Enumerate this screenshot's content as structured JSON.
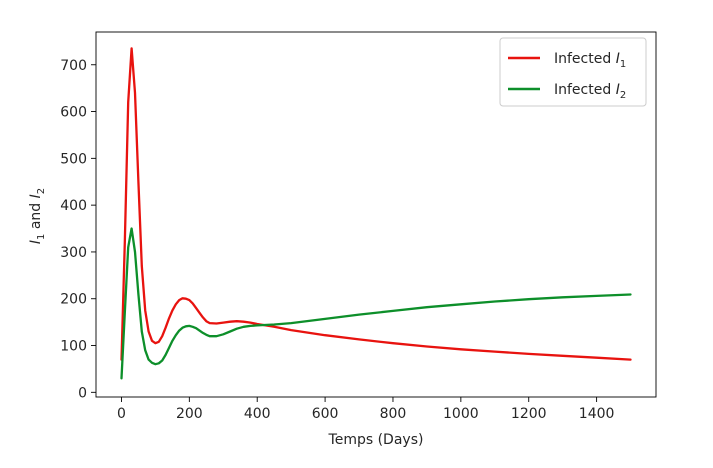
{
  "chart_data": {
    "type": "line",
    "title": "",
    "xlabel": "Temps (Days)",
    "ylabel": {
      "prefix": "I",
      "sub1": "1",
      "mid": " and ",
      "sub2": "2"
    },
    "xlim": [
      -75,
      1575
    ],
    "ylim": [
      -10,
      770
    ],
    "xticks": [
      0,
      200,
      400,
      600,
      800,
      1000,
      1200,
      1400
    ],
    "xtick_labels": [
      "0",
      "200",
      "400",
      "600",
      "800",
      "1000",
      "1200",
      "1400"
    ],
    "yticks": [
      0,
      100,
      200,
      300,
      400,
      500,
      600,
      700
    ],
    "ytick_labels": [
      "0",
      "100",
      "200",
      "300",
      "400",
      "500",
      "600",
      "700"
    ],
    "grid": false,
    "legend_position": "top-right",
    "series": [
      {
        "name": "Infected I1",
        "legend": {
          "text": "Infected ",
          "var": "I",
          "sub": "1"
        },
        "color": "#e8130f",
        "x": [
          0,
          10,
          20,
          30,
          40,
          50,
          60,
          70,
          80,
          90,
          100,
          110,
          120,
          130,
          140,
          150,
          160,
          170,
          180,
          190,
          200,
          210,
          220,
          230,
          240,
          250,
          260,
          280,
          300,
          320,
          340,
          360,
          380,
          400,
          450,
          500,
          600,
          700,
          800,
          900,
          1000,
          1100,
          1200,
          1300,
          1400,
          1500
        ],
        "y": [
          70,
          320,
          620,
          735,
          640,
          450,
          270,
          175,
          130,
          110,
          105,
          108,
          120,
          138,
          158,
          175,
          188,
          197,
          201,
          200,
          197,
          190,
          180,
          170,
          160,
          152,
          148,
          147,
          149,
          151,
          152,
          151,
          149,
          146,
          140,
          133,
          122,
          113,
          105,
          98,
          92,
          87,
          82,
          78,
          74,
          70
        ]
      },
      {
        "name": "Infected I2",
        "legend": {
          "text": "Infected ",
          "var": "I",
          "sub": "2"
        },
        "color": "#0d8f2a",
        "x": [
          0,
          10,
          20,
          30,
          40,
          50,
          60,
          70,
          80,
          90,
          100,
          110,
          120,
          130,
          140,
          150,
          160,
          170,
          180,
          190,
          200,
          210,
          220,
          230,
          240,
          250,
          260,
          280,
          300,
          320,
          340,
          360,
          380,
          400,
          450,
          500,
          600,
          700,
          800,
          900,
          1000,
          1100,
          1200,
          1300,
          1400,
          1500
        ],
        "y": [
          30,
          170,
          310,
          350,
          300,
          210,
          130,
          90,
          70,
          63,
          60,
          62,
          68,
          80,
          95,
          110,
          122,
          132,
          138,
          141,
          142,
          140,
          137,
          132,
          127,
          123,
          120,
          120,
          124,
          130,
          136,
          140,
          142,
          143,
          145,
          148,
          157,
          166,
          174,
          182,
          188,
          194,
          199,
          203,
          206,
          209
        ]
      }
    ]
  }
}
